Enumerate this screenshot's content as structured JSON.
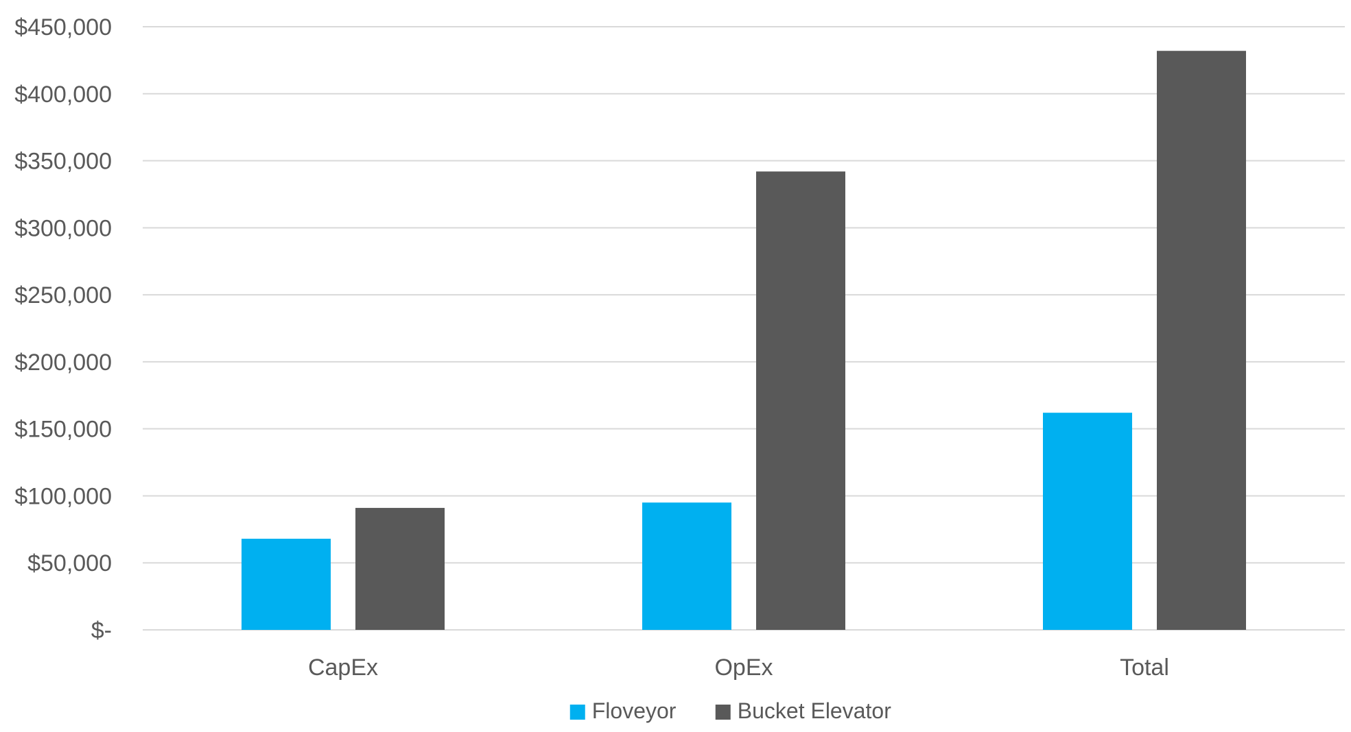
{
  "chart_data": {
    "type": "bar",
    "categories": [
      "CapEx",
      "OpEx",
      "Total"
    ],
    "series": [
      {
        "name": "Floveyor",
        "values": [
          68000,
          95000,
          162000
        ],
        "color": "#00b0f0"
      },
      {
        "name": "Bucket Elevator",
        "values": [
          91000,
          342000,
          432000
        ],
        "color": "#595959"
      }
    ],
    "ylim": [
      0,
      450000
    ],
    "yticks": [
      0,
      50000,
      100000,
      150000,
      200000,
      250000,
      300000,
      350000,
      400000,
      450000
    ],
    "ytick_labels": [
      "$-",
      "$50,000",
      "$100,000",
      "$150,000",
      "$200,000",
      "$250,000",
      "$300,000",
      "$350,000",
      "$400,000",
      "$450,000"
    ],
    "title": "",
    "xlabel": "",
    "ylabel": "",
    "grid": true,
    "legend_position": "bottom",
    "gridline_color": "#d9d9d9",
    "text_color": "#595959"
  }
}
